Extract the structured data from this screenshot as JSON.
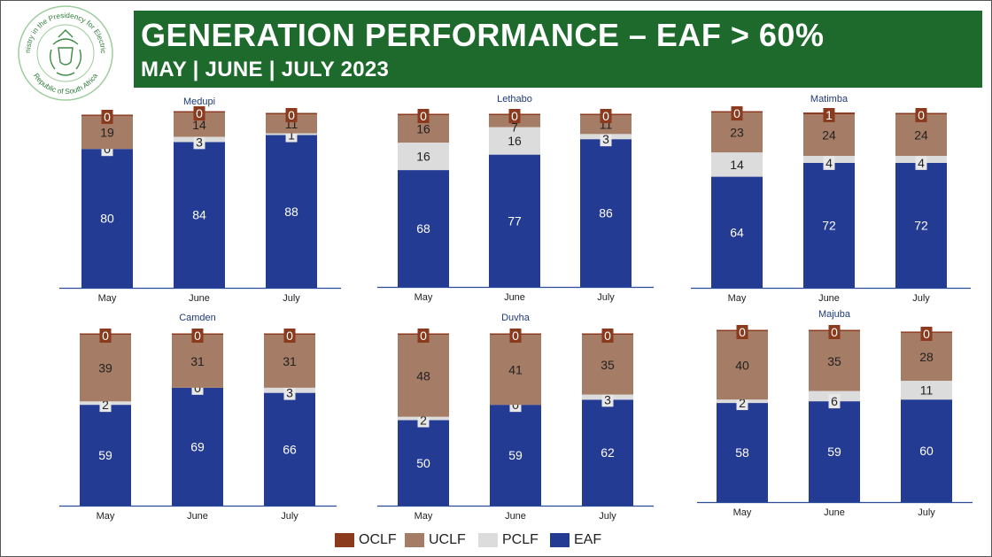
{
  "header": {
    "title": "GENERATION PERFORMANCE – EAF > 60%",
    "subtitle": "MAY | JUNE | JULY 2023"
  },
  "logo": {
    "icon": "coat-of-arms-seal-icon",
    "text_top": "Ministry in the Presidency for Electricity",
    "text_bottom": "Republic of South Africa"
  },
  "colors": {
    "OCLF": "#8b3a1e",
    "UCLF": "#a57c65",
    "PCLF": "#dcdcdc",
    "EAF": "#243b93",
    "banner": "#1d6a2c"
  },
  "legend": [
    "OCLF",
    "UCLF",
    "PCLF",
    "EAF"
  ],
  "chart_data": [
    {
      "type": "bar",
      "stacked": true,
      "title": "Medupi",
      "categories": [
        "May",
        "June",
        "July"
      ],
      "series": [
        {
          "name": "EAF",
          "values": [
            80,
            84,
            88
          ]
        },
        {
          "name": "PCLF",
          "values": [
            0,
            3,
            1
          ]
        },
        {
          "name": "UCLF",
          "values": [
            19,
            14,
            11
          ]
        },
        {
          "name": "OCLF",
          "values": [
            0,
            0,
            0
          ]
        }
      ]
    },
    {
      "type": "bar",
      "stacked": true,
      "title": "Lethabo",
      "categories": [
        "May",
        "June",
        "July"
      ],
      "series": [
        {
          "name": "EAF",
          "values": [
            68,
            77,
            86
          ]
        },
        {
          "name": "PCLF",
          "values": [
            16,
            16,
            3
          ]
        },
        {
          "name": "UCLF",
          "values": [
            16,
            7,
            11
          ]
        },
        {
          "name": "OCLF",
          "values": [
            0,
            0,
            0
          ]
        }
      ]
    },
    {
      "type": "bar",
      "stacked": true,
      "title": "Matimba",
      "categories": [
        "May",
        "June",
        "July"
      ],
      "series": [
        {
          "name": "EAF",
          "values": [
            64,
            72,
            72
          ]
        },
        {
          "name": "PCLF",
          "values": [
            14,
            4,
            4
          ]
        },
        {
          "name": "UCLF",
          "values": [
            23,
            24,
            24
          ]
        },
        {
          "name": "OCLF",
          "values": [
            0,
            1,
            0
          ]
        }
      ]
    },
    {
      "type": "bar",
      "stacked": true,
      "title": "Camden",
      "categories": [
        "May",
        "June",
        "July"
      ],
      "series": [
        {
          "name": "EAF",
          "values": [
            59,
            69,
            66
          ]
        },
        {
          "name": "PCLF",
          "values": [
            2,
            0,
            3
          ]
        },
        {
          "name": "UCLF",
          "values": [
            39,
            31,
            31
          ]
        },
        {
          "name": "OCLF",
          "values": [
            0,
            0,
            0
          ]
        }
      ]
    },
    {
      "type": "bar",
      "stacked": true,
      "title": "Duvha",
      "categories": [
        "May",
        "June",
        "July"
      ],
      "series": [
        {
          "name": "EAF",
          "values": [
            50,
            59,
            62
          ]
        },
        {
          "name": "PCLF",
          "values": [
            2,
            0,
            3
          ]
        },
        {
          "name": "UCLF",
          "values": [
            48,
            41,
            35
          ]
        },
        {
          "name": "OCLF",
          "values": [
            0,
            0,
            0
          ]
        }
      ]
    },
    {
      "type": "bar",
      "stacked": true,
      "title": "Majuba",
      "categories": [
        "May",
        "June",
        "July"
      ],
      "series": [
        {
          "name": "EAF",
          "values": [
            58,
            59,
            60
          ]
        },
        {
          "name": "PCLF",
          "values": [
            2,
            6,
            11
          ]
        },
        {
          "name": "UCLF",
          "values": [
            40,
            35,
            28
          ]
        },
        {
          "name": "OCLF",
          "values": [
            0,
            0,
            0
          ]
        }
      ]
    }
  ]
}
